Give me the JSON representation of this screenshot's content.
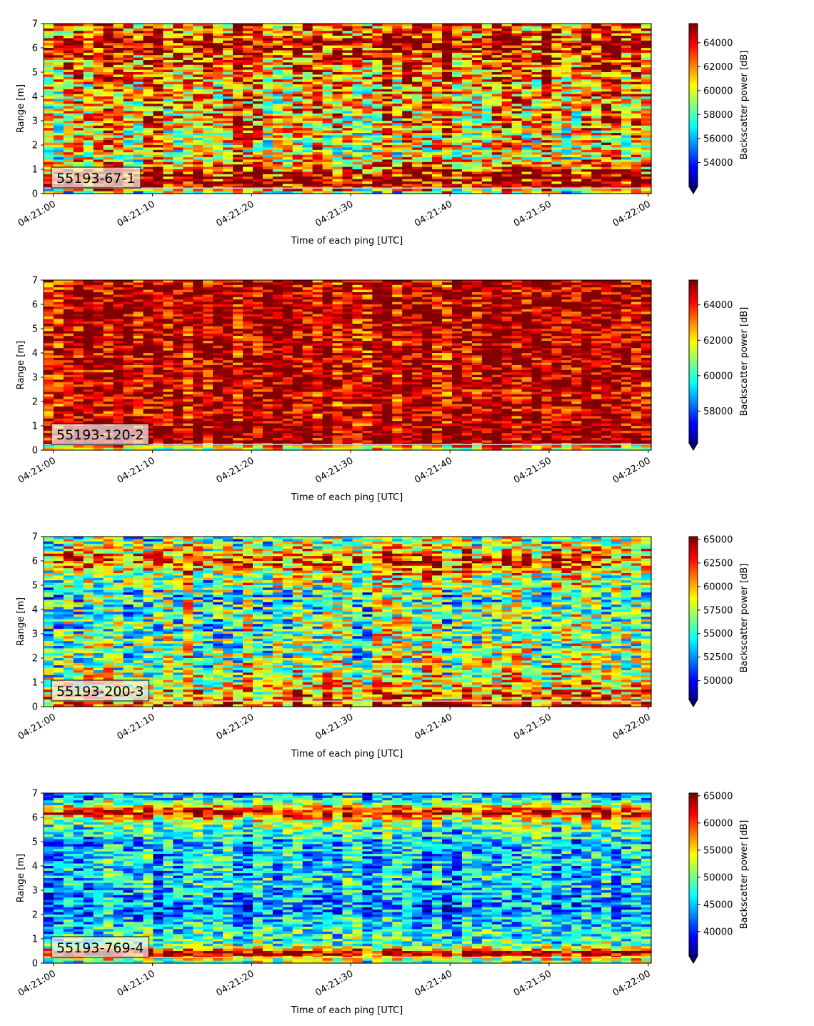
{
  "chart_data": [
    {
      "type": "heatmap",
      "label": "55193-67-1",
      "xlabel": "Time of each ping [UTC]",
      "ylabel": "Range [m]",
      "xticks": [
        "04:21:00",
        "04:21:10",
        "04:21:20",
        "04:21:30",
        "04:21:40",
        "04:21:50",
        "04:22:00"
      ],
      "xlim": [
        "04:20:59",
        "04:22:00.3"
      ],
      "yticks": [
        0,
        1,
        2,
        3,
        4,
        5,
        6,
        7
      ],
      "ylim": [
        0,
        7
      ],
      "colorbar": {
        "label": "Backscatter power [dB]",
        "colormap": "jet",
        "extend": "min",
        "ticks": [
          54000,
          56000,
          58000,
          60000,
          62000,
          64000
        ],
        "range": [
          52000,
          65600
        ]
      },
      "profile": [
        {
          "range": 0.1,
          "level": 0.55
        },
        {
          "range": 0.25,
          "level": 1.0
        },
        {
          "range": 0.55,
          "level": 0.95
        },
        {
          "range": 0.85,
          "level": 0.9
        },
        {
          "range": 1.5,
          "level": 0.6
        },
        {
          "range": 3.0,
          "level": 0.7
        },
        {
          "range": 4.5,
          "level": 0.72
        },
        {
          "range": 5.6,
          "level": 0.85
        },
        {
          "range": 6.2,
          "level": 0.97
        },
        {
          "range": 6.7,
          "level": 0.8
        }
      ],
      "noise": 0.32
    },
    {
      "type": "heatmap",
      "label": "55193-120-2",
      "xlabel": "Time of each ping [UTC]",
      "ylabel": "Range [m]",
      "xticks": [
        "04:21:00",
        "04:21:10",
        "04:21:20",
        "04:21:30",
        "04:21:40",
        "04:21:50",
        "04:22:00"
      ],
      "xlim": [
        "04:20:59",
        "04:22:00.3"
      ],
      "yticks": [
        0,
        1,
        2,
        3,
        4,
        5,
        6,
        7
      ],
      "ylim": [
        0,
        7
      ],
      "colorbar": {
        "label": "Backscatter power [dB]",
        "colormap": "jet",
        "extend": "min",
        "ticks": [
          58000,
          60000,
          62000,
          64000
        ],
        "range": [
          56200,
          65400
        ]
      },
      "profile": [
        {
          "range": 0.1,
          "level": 0.6
        },
        {
          "range": 0.3,
          "level": 1.0
        },
        {
          "range": 1.5,
          "level": 0.93
        },
        {
          "range": 3.0,
          "level": 0.93
        },
        {
          "range": 4.5,
          "level": 0.93
        },
        {
          "range": 6.0,
          "level": 0.97
        },
        {
          "range": 6.8,
          "level": 0.93
        }
      ],
      "noise": 0.22
    },
    {
      "type": "heatmap",
      "label": "55193-200-3",
      "xlabel": "Time of each ping [UTC]",
      "ylabel": "Range [m]",
      "xticks": [
        "04:21:00",
        "04:21:10",
        "04:21:20",
        "04:21:30",
        "04:21:40",
        "04:21:50",
        "04:22:00"
      ],
      "xlim": [
        "04:20:59",
        "04:22:00.3"
      ],
      "yticks": [
        0,
        1,
        2,
        3,
        4,
        5,
        6,
        7
      ],
      "ylim": [
        0,
        7
      ],
      "colorbar": {
        "label": "Backscatter power [dB]",
        "colormap": "jet",
        "extend": "min",
        "ticks": [
          50000,
          52500,
          55000,
          57500,
          60000,
          62500,
          65000
        ],
        "range": [
          48000,
          65300
        ]
      },
      "profile": [
        {
          "range": 0.1,
          "level": 0.85
        },
        {
          "range": 0.4,
          "level": 0.75
        },
        {
          "range": 1.5,
          "level": 0.55
        },
        {
          "range": 3.0,
          "level": 0.5
        },
        {
          "range": 4.5,
          "level": 0.45
        },
        {
          "range": 5.5,
          "level": 0.6
        },
        {
          "range": 6.0,
          "level": 0.85
        },
        {
          "range": 6.8,
          "level": 0.5
        }
      ],
      "noise": 0.3
    },
    {
      "type": "heatmap",
      "label": "55193-769-4",
      "xlabel": "Time of each ping [UTC]",
      "ylabel": "Range [m]",
      "xticks": [
        "04:21:00",
        "04:21:10",
        "04:21:20",
        "04:21:30",
        "04:21:40",
        "04:21:50",
        "04:22:00"
      ],
      "xlim": [
        "04:20:59",
        "04:22:00.3"
      ],
      "yticks": [
        0,
        1,
        2,
        3,
        4,
        5,
        6,
        7
      ],
      "ylim": [
        0,
        7
      ],
      "colorbar": {
        "label": "Backscatter power [dB]",
        "colormap": "jet",
        "extend": "min",
        "ticks": [
          40000,
          45000,
          50000,
          55000,
          60000,
          65000
        ],
        "range": [
          35500,
          65500
        ]
      },
      "profile": [
        {
          "range": 0.1,
          "level": 0.5
        },
        {
          "range": 0.4,
          "level": 1.0
        },
        {
          "range": 0.7,
          "level": 0.45
        },
        {
          "range": 1.2,
          "level": 0.4
        },
        {
          "range": 2.2,
          "level": 0.25
        },
        {
          "range": 3.5,
          "level": 0.35
        },
        {
          "range": 5.0,
          "level": 0.32
        },
        {
          "range": 5.8,
          "level": 0.5
        },
        {
          "range": 6.2,
          "level": 0.9
        },
        {
          "range": 6.8,
          "level": 0.3
        }
      ],
      "noise": 0.22
    }
  ]
}
